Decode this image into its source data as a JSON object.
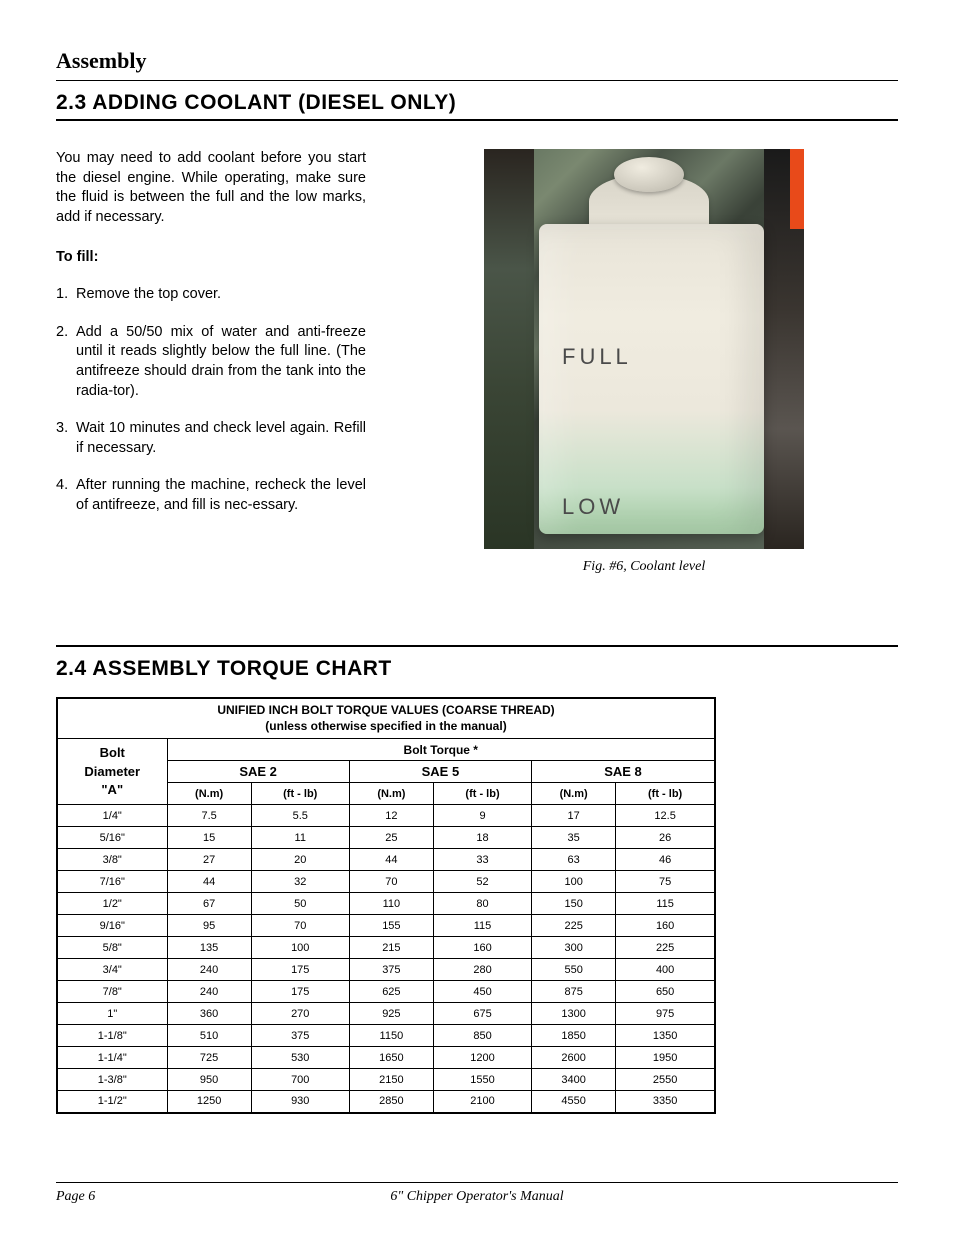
{
  "page_header": "Assembly",
  "section1": {
    "title": "2.3 ADDING COOLANT (DIESEL ONLY)",
    "intro": "You may need to add coolant before you start the diesel engine. While operating, make sure the fluid is between the full and the low marks, add if necessary.",
    "subhead": "To fill:",
    "steps": [
      {
        "n": "1.",
        "t": "Remove the top cover."
      },
      {
        "n": "2.",
        "t": "Add a 50/50 mix of water and anti-freeze until it reads slightly below the full line. (The antifreeze should drain from the tank into the radia-tor)."
      },
      {
        "n": "3.",
        "t": "Wait 10 minutes and check level again. Refill if necessary."
      },
      {
        "n": "4.",
        "t": "After running the machine, recheck the level of antifreeze, and fill is nec-essary."
      }
    ],
    "figure": {
      "full_label": "FULL",
      "low_label": "LOW",
      "caption": "Fig. #6, Coolant level",
      "colors": {
        "tank_top": "#e8e4d8",
        "tank_bottom": "#a0c8a0",
        "orange": "#e84a1a",
        "label_color": "#4a4a4a"
      }
    }
  },
  "section2": {
    "title": "2.4 ASSEMBLY TORQUE CHART",
    "table": {
      "type": "table",
      "title_line1": "UNIFIED INCH BOLT TORQUE VALUES (COARSE THREAD)",
      "title_line2": "(unless otherwise specified in the manual)",
      "bolt_dia_header": "Bolt Diameter \"A\"",
      "bolt_torque_header": "Bolt Torque *",
      "sae_headers": [
        "SAE 2",
        "SAE 5",
        "SAE 8"
      ],
      "unit_headers": [
        "(N.m)",
        "(ft - lb)",
        "(N.m)",
        "(ft - lb)",
        "(N.m)",
        "(ft - lb)"
      ],
      "rows": [
        [
          "1/4\"",
          "7.5",
          "5.5",
          "12",
          "9",
          "17",
          "12.5"
        ],
        [
          "5/16\"",
          "15",
          "11",
          "25",
          "18",
          "35",
          "26"
        ],
        [
          "3/8\"",
          "27",
          "20",
          "44",
          "33",
          "63",
          "46"
        ],
        [
          "7/16\"",
          "44",
          "32",
          "70",
          "52",
          "100",
          "75"
        ],
        [
          "1/2\"",
          "67",
          "50",
          "110",
          "80",
          "150",
          "115"
        ],
        [
          "9/16\"",
          "95",
          "70",
          "155",
          "115",
          "225",
          "160"
        ],
        [
          "5/8\"",
          "135",
          "100",
          "215",
          "160",
          "300",
          "225"
        ],
        [
          "3/4\"",
          "240",
          "175",
          "375",
          "280",
          "550",
          "400"
        ],
        [
          "7/8\"",
          "240",
          "175",
          "625",
          "450",
          "875",
          "650"
        ],
        [
          "1\"",
          "360",
          "270",
          "925",
          "675",
          "1300",
          "975"
        ],
        [
          "1-1/8\"",
          "510",
          "375",
          "1150",
          "850",
          "1850",
          "1350"
        ],
        [
          "1-1/4\"",
          "725",
          "530",
          "1650",
          "1200",
          "2600",
          "1950"
        ],
        [
          "1-3/8\"",
          "950",
          "700",
          "2150",
          "1550",
          "3400",
          "2550"
        ],
        [
          "1-1/2\"",
          "1250",
          "930",
          "2850",
          "2100",
          "4550",
          "3350"
        ]
      ],
      "border_color": "#000000",
      "font_size_body": 11,
      "font_size_header": 13
    }
  },
  "footer": {
    "page": "Page 6",
    "manual": "6\" Chipper Operator's Manual"
  }
}
